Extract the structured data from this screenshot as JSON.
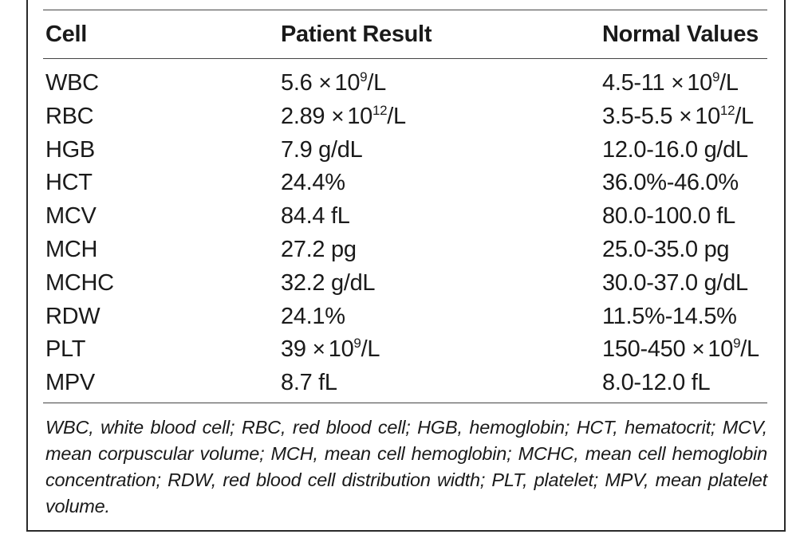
{
  "table": {
    "headers": {
      "cell": "Cell",
      "patient_result": "Patient Result",
      "normal_values": "Normal Values"
    },
    "rows": [
      {
        "cell": "WBC",
        "result": {
          "pre": "5.6",
          "times": "×",
          "base": "10",
          "exp": "9",
          "post": "/L"
        },
        "normal": {
          "pre": "4.5-11",
          "times": "×",
          "base": "10",
          "exp": "9",
          "post": "/L"
        }
      },
      {
        "cell": "RBC",
        "result": {
          "pre": "2.89",
          "times": "×",
          "base": "10",
          "exp": "12",
          "post": "/L"
        },
        "normal": {
          "pre": "3.5-5.5",
          "times": "×",
          "base": "10",
          "exp": "12",
          "post": "/L"
        }
      },
      {
        "cell": "HGB",
        "result": {
          "pre": "7.9 g/dL"
        },
        "normal": {
          "pre": "12.0-16.0 g/dL"
        }
      },
      {
        "cell": "HCT",
        "result": {
          "pre": "24.4%"
        },
        "normal": {
          "pre": "36.0%-46.0%"
        }
      },
      {
        "cell": "MCV",
        "result": {
          "pre": "84.4 fL"
        },
        "normal": {
          "pre": "80.0-100.0 fL"
        }
      },
      {
        "cell": "MCH",
        "result": {
          "pre": "27.2 pg"
        },
        "normal": {
          "pre": "25.0-35.0 pg"
        }
      },
      {
        "cell": "MCHC",
        "result": {
          "pre": "32.2 g/dL"
        },
        "normal": {
          "pre": "30.0-37.0 g/dL"
        }
      },
      {
        "cell": "RDW",
        "result": {
          "pre": "24.1%"
        },
        "normal": {
          "pre": "11.5%-14.5%"
        }
      },
      {
        "cell": "PLT",
        "result": {
          "pre": "39",
          "times": "×",
          "base": "10",
          "exp": "9",
          "post": "/L"
        },
        "normal": {
          "pre": "150-450",
          "times": "×",
          "base": "10",
          "exp": "9",
          "post": "/L"
        }
      },
      {
        "cell": "MPV",
        "result": {
          "pre": "8.7 fL"
        },
        "normal": {
          "pre": "8.0-12.0 fL"
        }
      }
    ]
  },
  "footnote": "WBC, white blood cell; RBC, red blood cell; HGB, hemoglobin; HCT, hematocrit; MCV, mean corpuscular volume; MCH, mean cell hemoglobin; MCHC, mean cell hemoglobin concentration; RDW, red blood cell distribution width; PLT, platelet; MPV, mean platelet volume."
}
